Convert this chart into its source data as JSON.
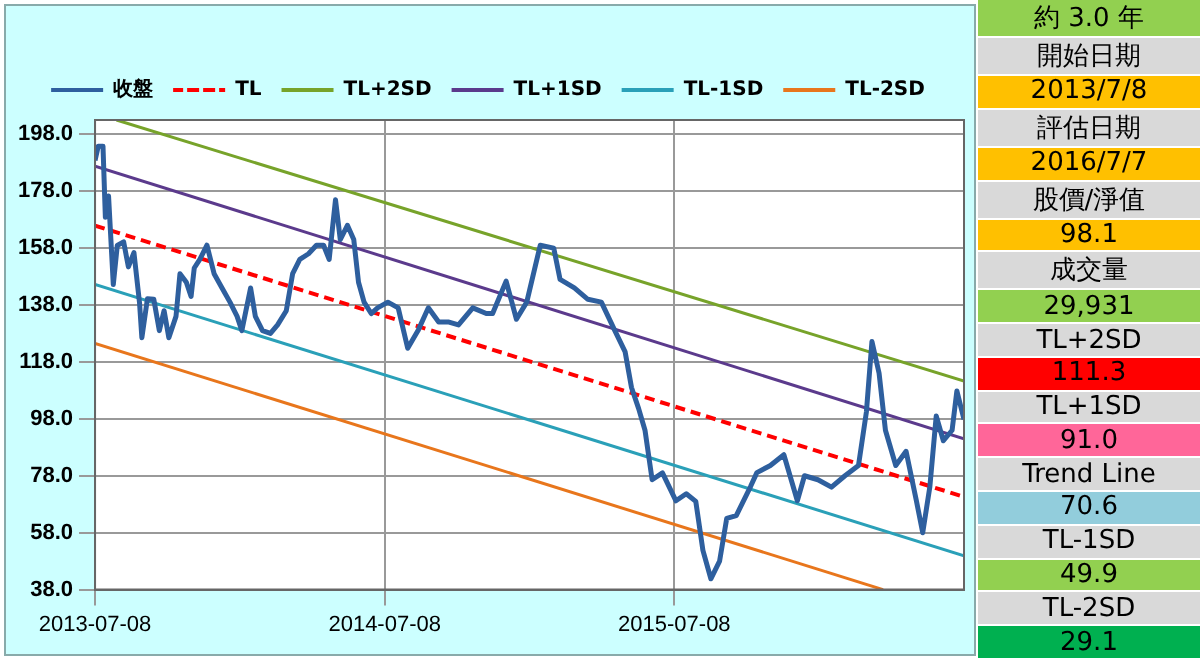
{
  "chart_data": {
    "type": "line",
    "marker": "none",
    "grid": true,
    "legend": "top",
    "xlim": [
      "2013-07-08",
      "2016-07-07"
    ],
    "xticks": [
      "2013-07-08",
      "2014-07-08",
      "2015-07-08"
    ],
    "ylim": [
      38,
      203
    ],
    "yticks": [
      {
        "value": 38,
        "label": "38.0"
      },
      {
        "value": 58,
        "label": "58.0"
      },
      {
        "value": 78,
        "label": "78.0"
      },
      {
        "value": 98,
        "label": "98.0"
      },
      {
        "value": 118,
        "label": "118.0"
      },
      {
        "value": 138,
        "label": "138.0"
      },
      {
        "value": 158,
        "label": "158.0"
      },
      {
        "value": 178,
        "label": "178.0"
      },
      {
        "value": 198,
        "label": "198.0"
      }
    ],
    "series": [
      {
        "name": "收盤",
        "color": "#2e5f9e",
        "line_style": "solid",
        "x": [
          "2013-07-08",
          "2013-07-12",
          "2013-07-18",
          "2013-07-21",
          "2013-07-25",
          "2013-07-31",
          "2013-08-05",
          "2013-08-13",
          "2013-08-19",
          "2013-08-26",
          "2013-09-02",
          "2013-09-05",
          "2013-09-12",
          "2013-09-20",
          "2013-09-27",
          "2013-10-03",
          "2013-10-09",
          "2013-10-18",
          "2013-10-23",
          "2013-10-31",
          "2013-11-06",
          "2013-11-10",
          "2013-11-17",
          "2013-11-26",
          "2013-12-05",
          "2013-12-15",
          "2013-12-25",
          "2014-01-03",
          "2014-01-09",
          "2014-01-20",
          "2014-01-26",
          "2014-02-04",
          "2014-02-14",
          "2014-02-23",
          "2014-03-06",
          "2014-03-14",
          "2014-03-23",
          "2014-04-03",
          "2014-04-13",
          "2014-04-22",
          "2014-04-29",
          "2014-05-07",
          "2014-05-13",
          "2014-05-22",
          "2014-05-30",
          "2014-06-05",
          "2014-06-12",
          "2014-06-21",
          "2014-06-29",
          "2014-07-12",
          "2014-07-25",
          "2014-08-06",
          "2014-08-19",
          "2014-09-01",
          "2014-09-14",
          "2014-09-27",
          "2014-10-09",
          "2014-10-27",
          "2014-11-13",
          "2014-11-21",
          "2014-12-08",
          "2014-12-21",
          "2015-01-03",
          "2015-01-20",
          "2015-02-06",
          "2015-02-14",
          "2015-03-04",
          "2015-03-21",
          "2015-04-07",
          "2015-04-24",
          "2015-05-07",
          "2015-05-15",
          "2015-05-24",
          "2015-06-01",
          "2015-06-10",
          "2015-06-23",
          "2015-07-10",
          "2015-07-23",
          "2015-08-04",
          "2015-08-13",
          "2015-08-23",
          "2015-09-03",
          "2015-09-12",
          "2015-09-24",
          "2015-10-12",
          "2015-10-20",
          "2015-11-06",
          "2015-11-23",
          "2015-12-10",
          "2015-12-19",
          "2016-01-05",
          "2016-01-22",
          "2016-02-08",
          "2016-02-25",
          "2016-03-06",
          "2016-03-13",
          "2016-03-22",
          "2016-03-30",
          "2016-04-12",
          "2016-04-25",
          "2016-05-08",
          "2016-05-16",
          "2016-05-25",
          "2016-06-02",
          "2016-06-11",
          "2016-06-22",
          "2016-06-28",
          "2016-07-07"
        ],
        "values": [
          188.8,
          193.8,
          193.8,
          168.8,
          176.3,
          145.2,
          158.9,
          160.2,
          151.4,
          156.4,
          138.9,
          126.5,
          140.2,
          140,
          129,
          136,
          126.5,
          134,
          149,
          146,
          141,
          151,
          154,
          159,
          149,
          144,
          139,
          134,
          129,
          144,
          134,
          129,
          128,
          131,
          136,
          149,
          154,
          156,
          159,
          159,
          154,
          175,
          161,
          166,
          161,
          146,
          139,
          135,
          137,
          139,
          137,
          122.8,
          129,
          137,
          132,
          132,
          131,
          137,
          135,
          135,
          146.4,
          133,
          139,
          159,
          158,
          147,
          144,
          140,
          139,
          129,
          121.5,
          109,
          101.6,
          94,
          76.6,
          79,
          69.2,
          71.7,
          69,
          51.8,
          41.8,
          48,
          63,
          64,
          74.2,
          79.1,
          81.6,
          85.4,
          69.2,
          78,
          76.6,
          74,
          78,
          81.6,
          100.4,
          125.2,
          114,
          94,
          81.6,
          86.6,
          69.2,
          58,
          74.2,
          99,
          90.3,
          94,
          107.8,
          97.8
        ]
      },
      {
        "name": "TL",
        "color": "#ff0000",
        "line_style": "dashed",
        "x": [
          "2013-07-08",
          "2016-07-07"
        ],
        "values": [
          165.9,
          70.6
        ]
      },
      {
        "name": "TL+2SD",
        "color": "#77a32a",
        "line_style": "solid",
        "x": [
          "2013-08-04",
          "2016-07-07"
        ],
        "values": [
          203,
          111.3
        ]
      },
      {
        "name": "TL+1SD",
        "color": "#5b3a8c",
        "line_style": "solid",
        "x": [
          "2013-07-08",
          "2016-07-07"
        ],
        "values": [
          186.8,
          91.0
        ]
      },
      {
        "name": "TL-1SD",
        "color": "#2aa0b8",
        "line_style": "solid",
        "x": [
          "2013-07-08",
          "2016-07-07"
        ],
        "values": [
          145.2,
          49.9
        ]
      },
      {
        "name": "TL-2SD",
        "color": "#e8761c",
        "line_style": "solid",
        "x": [
          "2013-07-08",
          "2016-03-27"
        ],
        "values": [
          124.5,
          38
        ]
      }
    ],
    "annotations": [
      "約 3.0 年",
      "開始日期",
      "2013/7/8",
      "評估日期",
      "2016/7/7",
      "股價/淨值",
      "98.1",
      "成交量",
      "29,931",
      "TL+2SD",
      "111.3",
      "TL+1SD",
      "91.0",
      "Trend Line",
      "70.6",
      "TL-1SD",
      "49.9",
      "TL-2SD",
      "29.1"
    ]
  }
}
